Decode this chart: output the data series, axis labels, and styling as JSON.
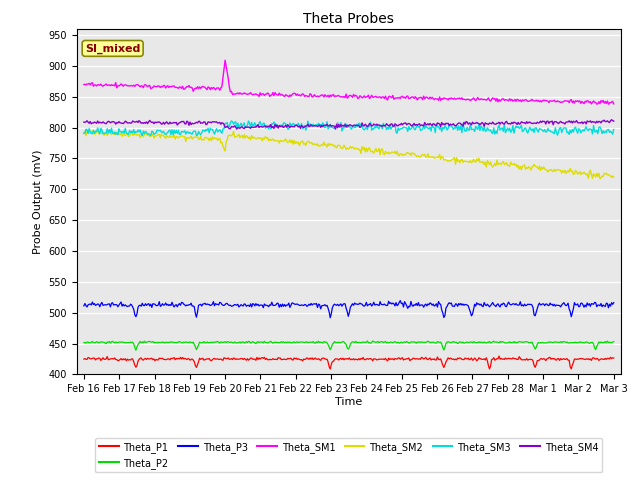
{
  "title": "Theta Probes",
  "xlabel": "Time",
  "ylabel": "Probe Output (mV)",
  "ylim": [
    400,
    960
  ],
  "yticks": [
    400,
    450,
    500,
    550,
    600,
    650,
    700,
    750,
    800,
    850,
    900,
    950
  ],
  "background_color": "#e8e8e8",
  "annotation_text": "SI_mixed",
  "annotation_bg": "#ffff99",
  "annotation_border": "#888800",
  "annotation_text_color": "#880000",
  "x_labels": [
    "Feb 16",
    "Feb 17",
    "Feb 18",
    "Feb 19",
    "Feb 20",
    "Feb 21",
    "Feb 22",
    "Feb 23",
    "Feb 24",
    "Feb 25",
    "Feb 26",
    "Feb 27",
    "Feb 28",
    "Mar 1",
    "Mar 2",
    "Mar 3"
  ],
  "colors": {
    "Theta_P1": "#ff0000",
    "Theta_P2": "#00dd00",
    "Theta_P3": "#0000ff",
    "Theta_SM1": "#ff00ff",
    "Theta_SM2": "#dddd00",
    "Theta_SM3": "#00dddd",
    "Theta_SM4": "#8800cc"
  }
}
